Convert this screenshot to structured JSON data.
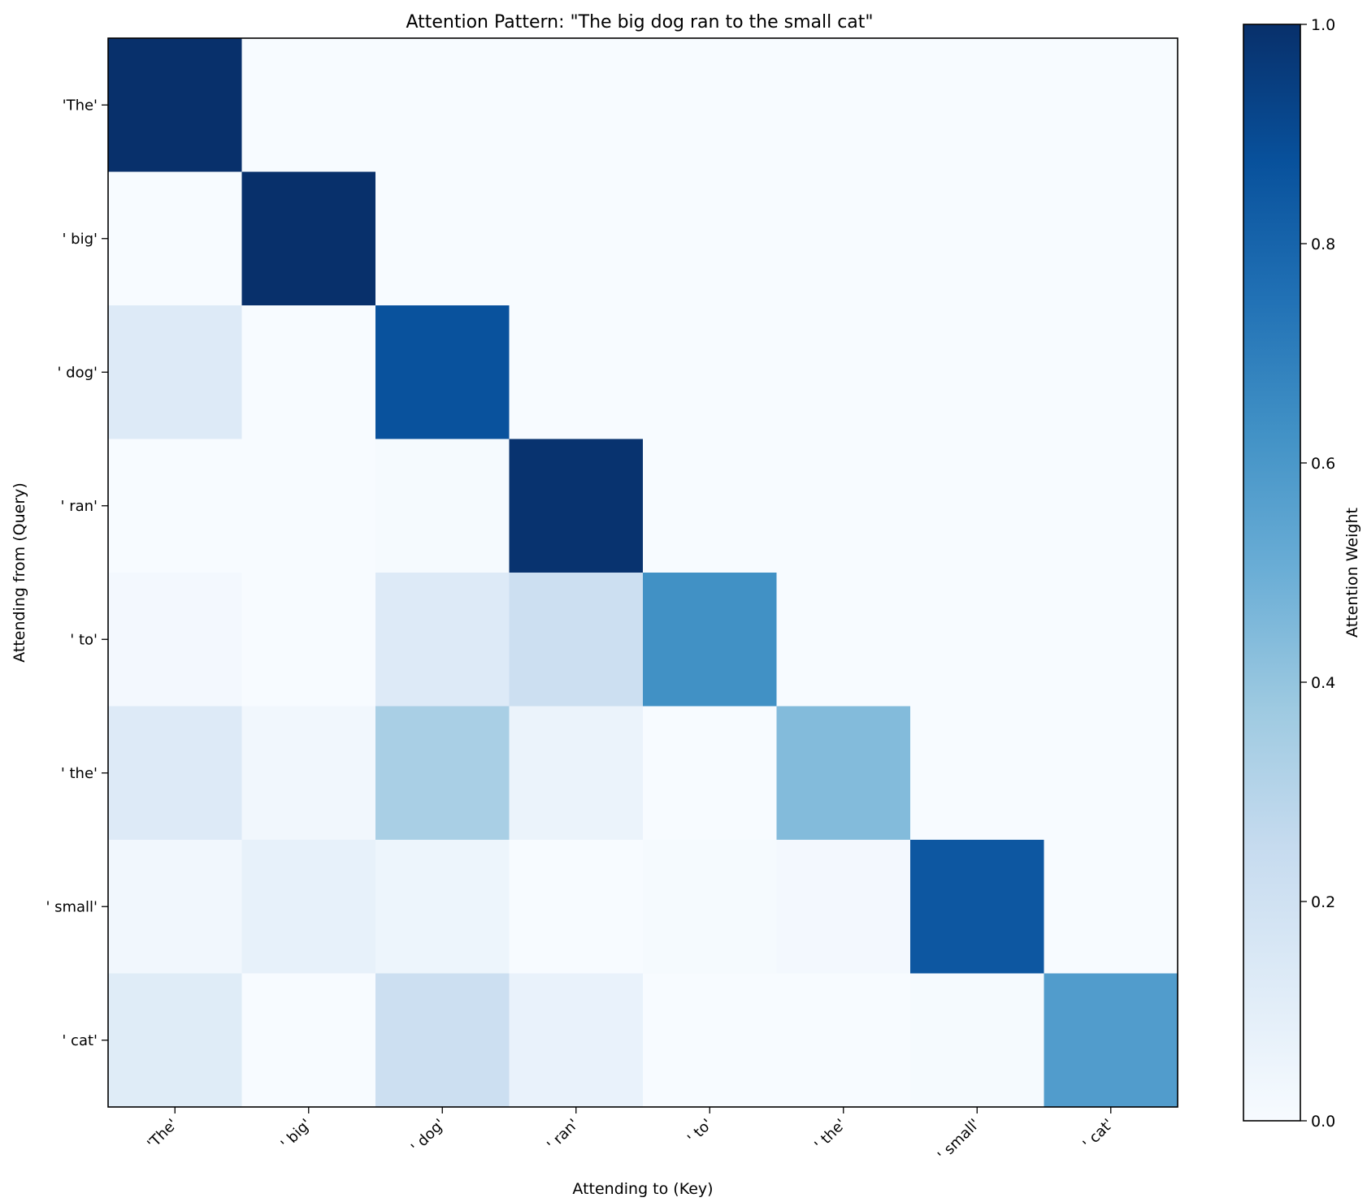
{
  "chart_data": {
    "type": "heatmap",
    "title": "Attention Pattern: \"The big dog ran to the small cat\"",
    "xlabel": "Attending to (Key)",
    "ylabel": "Attending from (Query)",
    "x_categories": [
      "'The'",
      "' big'",
      "' dog'",
      "' ran'",
      "' to'",
      "' the'",
      "' small'",
      "' cat'"
    ],
    "y_categories": [
      "'The'",
      "' big'",
      "' dog'",
      "' ran'",
      "' to'",
      "' the'",
      "' small'",
      "' cat'"
    ],
    "values": [
      [
        1.0,
        0.0,
        0.0,
        0.0,
        0.0,
        0.0,
        0.0,
        0.0
      ],
      [
        0.0,
        1.0,
        0.0,
        0.0,
        0.0,
        0.0,
        0.0,
        0.0
      ],
      [
        0.13,
        0.0,
        0.87,
        0.0,
        0.0,
        0.0,
        0.0,
        0.0
      ],
      [
        0.0,
        0.0,
        0.01,
        0.99,
        0.0,
        0.0,
        0.0,
        0.0
      ],
      [
        0.02,
        0.0,
        0.13,
        0.22,
        0.63,
        0.0,
        0.0,
        0.0
      ],
      [
        0.13,
        0.03,
        0.34,
        0.06,
        0.0,
        0.44,
        0.0,
        0.0
      ],
      [
        0.03,
        0.08,
        0.05,
        0.0,
        0.01,
        0.02,
        0.85,
        0.0
      ],
      [
        0.12,
        0.0,
        0.22,
        0.07,
        0.0,
        0.0,
        0.01,
        0.58
      ]
    ],
    "colorbar": {
      "label": "Attention Weight",
      "range": [
        0,
        1
      ],
      "ticks": [
        "0.0",
        "0.2",
        "0.4",
        "0.6",
        "0.8",
        "1.0"
      ],
      "colormap": "Blues",
      "colors": [
        "#f7fbff",
        "#deebf7",
        "#c6dbef",
        "#9ecae1",
        "#6baed6",
        "#4292c6",
        "#2171b5",
        "#08519c",
        "#08306b"
      ]
    },
    "grid": false
  }
}
